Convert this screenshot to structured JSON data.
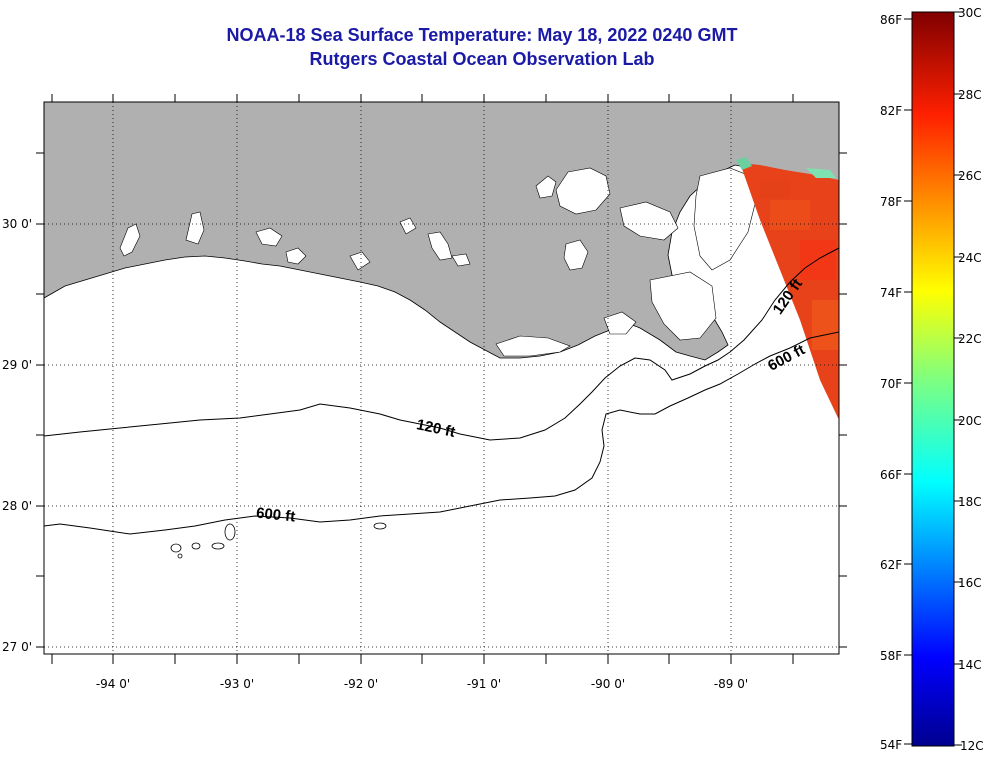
{
  "title": {
    "line1": "NOAA-18 Sea Surface Temperature:  May 18, 2022 0240 GMT",
    "line2": "Rutgers Coastal Ocean Observation Lab"
  },
  "map": {
    "lat_labels": [
      "30 0'",
      "29 0'",
      "28 0'",
      "27 0'"
    ],
    "lon_labels": [
      "-94 0'",
      "-93 0'",
      "-92 0'",
      "-91 0'",
      "-90 0'",
      "-89 0'"
    ],
    "contours": [
      {
        "depth_label": "120 ft"
      },
      {
        "depth_label": "600 ft"
      }
    ],
    "side_contours": [
      "120 ft",
      "600 ft"
    ],
    "land_color": "#b0b0b0",
    "sst_color": "#e8421a"
  },
  "colorbar": {
    "f_labels": [
      "86F",
      "82F",
      "78F",
      "74F",
      "70F",
      "66F",
      "62F",
      "58F",
      "54F"
    ],
    "c_labels": [
      "30C",
      "28C",
      "26C",
      "24C",
      "22C",
      "20C",
      "18C",
      "16C",
      "14C",
      "12C"
    ]
  }
}
